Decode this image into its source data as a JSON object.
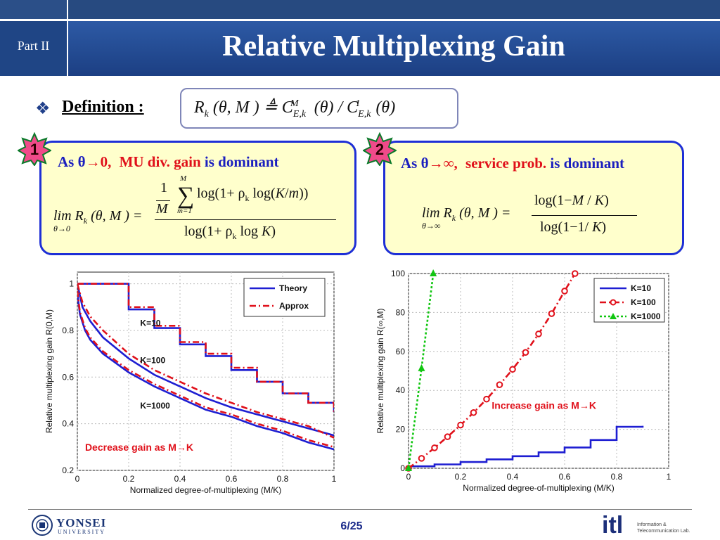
{
  "header": {
    "part": "Part II",
    "title": "Relative Multiplexing Gain"
  },
  "definition": {
    "label": "Definition :",
    "formula": "R_k (θ, M ) ≜ C^M_{E,k}(θ) / C^1_{E,k}(θ)"
  },
  "panels": [
    {
      "badge": "1",
      "head_prefix": "As θ",
      "head_arrow": "→",
      "head_limit": "0,",
      "head_term": "MU div. gain",
      "head_suffix": "is dominant",
      "formula_lhs": "lim R_k (θ, M ) =",
      "formula_lim_sub": "θ→0",
      "numerator": "1/M Σ_{m=1}^{M} log(1 + ρ_k log(K/m))",
      "denominator": "log(1 + ρ_k log K)"
    },
    {
      "badge": "2",
      "head_prefix": "As θ",
      "head_arrow": "→",
      "head_limit": "∞,",
      "head_term": "service prob.",
      "head_suffix": "is dominant",
      "formula_lhs": "lim R_k (θ, M ) =",
      "formula_lim_sub": "θ→∞",
      "numerator": "log(1 − M / K)",
      "denominator": "log(1 − 1/ K)"
    }
  ],
  "chart_data": [
    {
      "type": "line",
      "xlabel": "Normalized degree-of-multiplexing (M/K)",
      "ylabel": "Relative multiplexing gain R(0,M)",
      "xlim": [
        0,
        1
      ],
      "ylim": [
        0.2,
        1.05
      ],
      "xticks": [
        "0",
        "0.2",
        "0.4",
        "0.6",
        "0.8",
        "1"
      ],
      "yticks": [
        "0.2",
        "0.4",
        "0.6",
        "0.8",
        "1"
      ],
      "grid": true,
      "legend": {
        "position": "top-right",
        "entries": [
          "Theory",
          "Approx"
        ]
      },
      "annotations": [
        "K=10",
        "K=100",
        "K=1000",
        "Decrease gain as M→K"
      ],
      "series": [
        {
          "name": "Theory",
          "label": "K=10",
          "style": "step",
          "color": "#1e1ed2",
          "x": [
            0,
            0.1,
            0.2,
            0.3,
            0.4,
            0.5,
            0.6,
            0.7,
            0.8,
            0.9,
            1.0
          ],
          "y": [
            1.0,
            1.0,
            0.89,
            0.81,
            0.74,
            0.69,
            0.63,
            0.58,
            0.53,
            0.49,
            0.45
          ]
        },
        {
          "name": "Approx",
          "label": "K=10",
          "style": "step",
          "color": "#e0101a",
          "x": [
            0,
            0.1,
            0.2,
            0.3,
            0.4,
            0.5,
            0.6,
            0.7,
            0.8,
            0.9,
            1.0
          ],
          "y": [
            1.0,
            1.0,
            0.9,
            0.82,
            0.75,
            0.7,
            0.64,
            0.58,
            0.53,
            0.49,
            0.44
          ]
        },
        {
          "name": "Theory",
          "label": "K=100",
          "color": "#1e1ed2",
          "x": [
            0,
            0.02,
            0.05,
            0.1,
            0.2,
            0.3,
            0.4,
            0.5,
            0.6,
            0.7,
            0.8,
            0.9,
            1.0
          ],
          "y": [
            1.0,
            0.9,
            0.84,
            0.77,
            0.68,
            0.61,
            0.56,
            0.51,
            0.47,
            0.44,
            0.41,
            0.38,
            0.35
          ]
        },
        {
          "name": "Approx",
          "label": "K=100",
          "color": "#e0101a",
          "x": [
            0,
            0.02,
            0.05,
            0.1,
            0.2,
            0.3,
            0.4,
            0.5,
            0.6,
            0.7,
            0.8,
            0.9,
            1.0
          ],
          "y": [
            1.0,
            0.92,
            0.86,
            0.8,
            0.7,
            0.63,
            0.58,
            0.53,
            0.49,
            0.45,
            0.42,
            0.39,
            0.34
          ]
        },
        {
          "name": "Theory",
          "label": "K=1000",
          "color": "#1e1ed2",
          "x": [
            0,
            0.01,
            0.03,
            0.05,
            0.1,
            0.2,
            0.3,
            0.4,
            0.5,
            0.6,
            0.7,
            0.8,
            0.9,
            1.0
          ],
          "y": [
            0.96,
            0.87,
            0.8,
            0.76,
            0.7,
            0.62,
            0.56,
            0.51,
            0.46,
            0.43,
            0.39,
            0.36,
            0.32,
            0.29
          ]
        },
        {
          "name": "Approx",
          "label": "K=1000",
          "color": "#e0101a",
          "x": [
            0,
            0.01,
            0.03,
            0.05,
            0.1,
            0.2,
            0.3,
            0.4,
            0.5,
            0.6,
            0.7,
            0.8,
            0.9,
            1.0
          ],
          "y": [
            0.97,
            0.88,
            0.81,
            0.77,
            0.71,
            0.63,
            0.57,
            0.52,
            0.47,
            0.44,
            0.4,
            0.37,
            0.33,
            0.3
          ]
        }
      ]
    },
    {
      "type": "line",
      "xlabel": "Normalized degree-of-multiplexing (M/K)",
      "ylabel": "Relative multiplexing gain R(∞,M)",
      "xlim": [
        0,
        1
      ],
      "ylim": [
        0,
        100
      ],
      "xticks": [
        "0",
        "0.2",
        "0.4",
        "0.6",
        "0.8",
        "1"
      ],
      "yticks": [
        "0",
        "20",
        "40",
        "60",
        "80",
        "100"
      ],
      "grid": true,
      "legend": {
        "position": "top-right",
        "entries": [
          "K=10",
          "K=100",
          "K=1000"
        ]
      },
      "annotations": [
        "Increase gain as M→K"
      ],
      "series": [
        {
          "name": "K=10",
          "style": "step",
          "color": "#1e1ed2",
          "x": [
            0,
            0.1,
            0.2,
            0.3,
            0.4,
            0.5,
            0.6,
            0.7,
            0.8,
            0.9
          ],
          "y": [
            1,
            2,
            3.2,
            4.6,
            6.2,
            8.2,
            10.7,
            14.5,
            21.3,
            21.8
          ]
        },
        {
          "name": "K=100",
          "color": "#e0101a",
          "marker": "circle",
          "x": [
            0,
            0.05,
            0.1,
            0.15,
            0.2,
            0.25,
            0.3,
            0.35,
            0.4,
            0.45,
            0.5,
            0.55,
            0.6,
            0.64
          ],
          "y": [
            0,
            5.1,
            10.5,
            16.2,
            22.2,
            28.6,
            35.5,
            42.9,
            50.8,
            59.5,
            69.0,
            79.4,
            91.0,
            100
          ]
        },
        {
          "name": "K=1000",
          "color": "#11c611",
          "marker": "triangle",
          "x": [
            0,
            0.05,
            0.095
          ],
          "y": [
            0,
            51.3,
            100
          ]
        }
      ]
    }
  ],
  "footer": {
    "page": "6/25",
    "left_logo": "YONSEI",
    "left_logo_sub": "UNIVERSITY",
    "right_logo": "itl",
    "right_logo_line1": "Information &",
    "right_logo_line2": "Telecommunication Lab."
  }
}
